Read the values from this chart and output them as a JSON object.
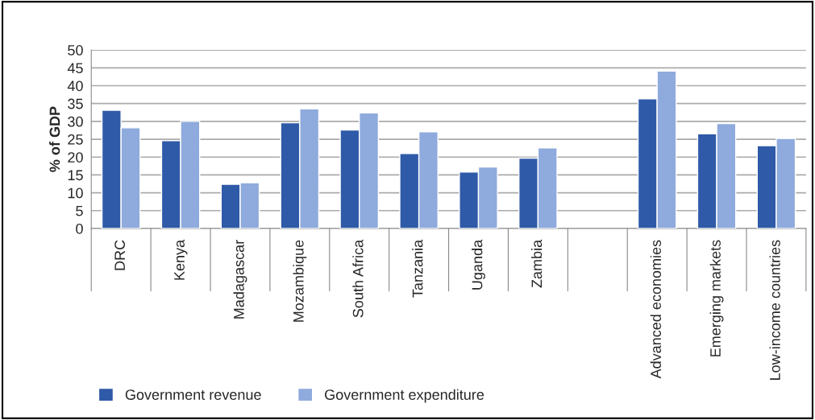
{
  "chart_data": {
    "type": "bar",
    "ylabel": "% of GDP",
    "categories": [
      "DRC",
      "Kenya",
      "Madagascar",
      "Mozambique",
      "South Africa",
      "Tanzania",
      "Uganda",
      "Zambia",
      null,
      "Advanced economies",
      "Emerging markets",
      "Low-income countries"
    ],
    "series": [
      {
        "name": "Government revenue",
        "color": "#2f5aa8",
        "values": [
          33.1,
          24.6,
          12.4,
          29.6,
          27.6,
          21.0,
          15.8,
          19.7,
          null,
          36.3,
          26.5,
          23.2
        ]
      },
      {
        "name": "Government expenditure",
        "color": "#8faadc",
        "values": [
          28.2,
          30.0,
          12.8,
          33.5,
          32.4,
          27.1,
          17.2,
          22.6,
          null,
          44.1,
          29.4,
          25.2
        ]
      }
    ],
    "ylim": [
      0,
      50
    ],
    "yticks": [
      0,
      5,
      10,
      15,
      20,
      25,
      30,
      35,
      40,
      45,
      50
    ],
    "grid": "y",
    "legend": "bottom left"
  }
}
